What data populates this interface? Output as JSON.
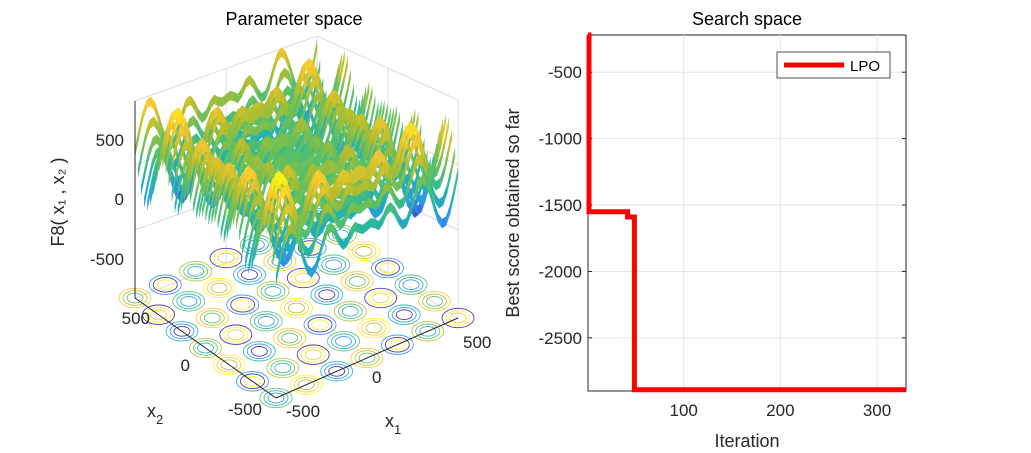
{
  "chart_data": [
    {
      "type": "surface",
      "title": "Parameter space",
      "xlabel": "x",
      "xlabel_sub": "1",
      "ylabel": "x",
      "ylabel_sub": "2",
      "zlabel": "F8( x₁ , x₂ )",
      "x_ticks": [
        "-500",
        "0",
        "500"
      ],
      "y_ticks": [
        "-500",
        "0",
        "500"
      ],
      "z_ticks": [
        "500",
        "0",
        "-500"
      ],
      "xlim": [
        -500,
        500
      ],
      "ylim": [
        -500,
        500
      ],
      "zlim": [
        -840,
        840
      ],
      "contour_projection": true,
      "colormap": [
        "#3e26a8",
        "#2d96ef",
        "#1fb1b3",
        "#55c067",
        "#b7bd2c",
        "#f9c832",
        "#f9fb0e"
      ]
    },
    {
      "type": "line",
      "title": "Search space",
      "xlabel": "Iteration",
      "ylabel": "Best score obtained so far",
      "x_ticks": [
        "100",
        "200",
        "300"
      ],
      "y_ticks": [
        "-500",
        "-1000",
        "-1500",
        "-2000",
        "-2500"
      ],
      "xlim": [
        1,
        330
      ],
      "ylim": [
        -2900,
        -220
      ],
      "grid": true,
      "legend_position": "top-right",
      "series": [
        {
          "name": "LPO",
          "color": "#ff0000",
          "x": [
            1,
            2,
            2,
            37,
            37,
            42,
            42,
            45,
            45,
            49,
            49,
            330
          ],
          "y": [
            -220,
            -220,
            -1550,
            -1550,
            -1550,
            -1550,
            -1590,
            -1590,
            -1590,
            -1590,
            -2890,
            -2890
          ]
        }
      ]
    }
  ]
}
